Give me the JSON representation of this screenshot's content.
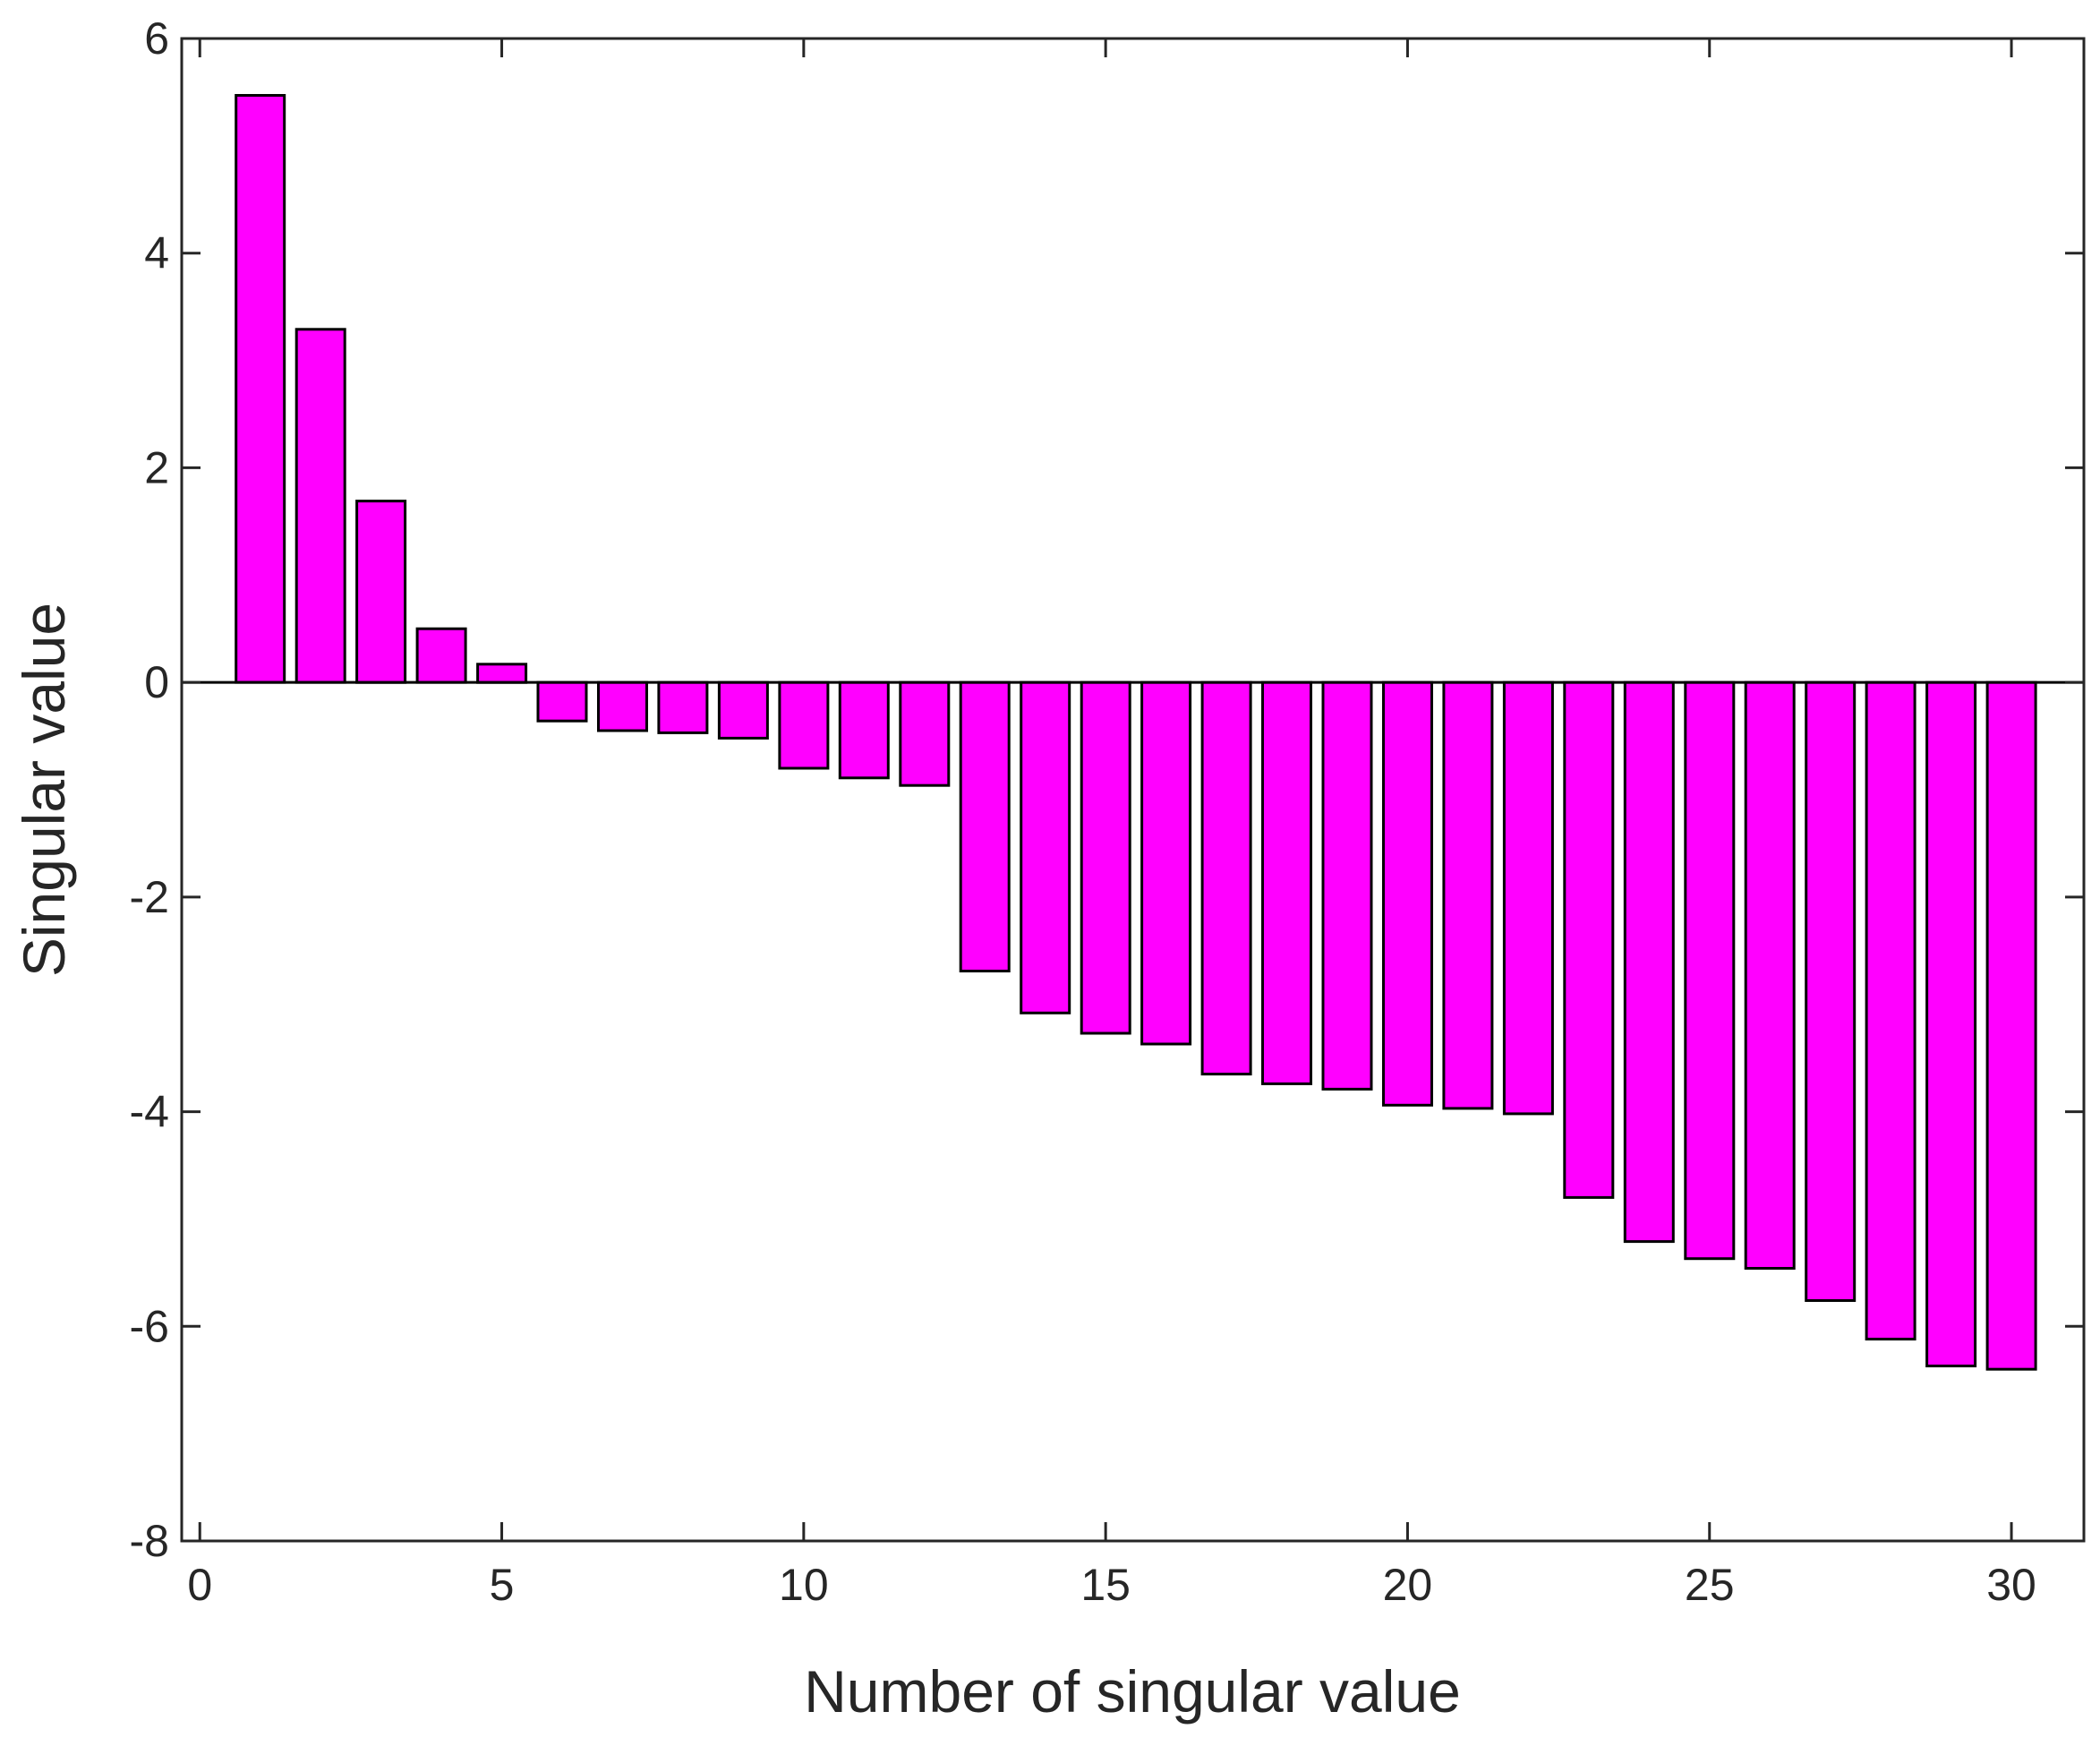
{
  "chart_data": {
    "type": "bar",
    "title": "",
    "xlabel": "Number of singular value",
    "ylabel": "Singular value",
    "xlim": [
      -0.3,
      31.2
    ],
    "ylim": [
      -8,
      6
    ],
    "xticks": [
      0,
      5,
      10,
      15,
      20,
      25,
      30
    ],
    "yticks": [
      -8,
      -6,
      -4,
      -2,
      0,
      2,
      4,
      6
    ],
    "x": [
      1,
      2,
      3,
      4,
      5,
      6,
      7,
      8,
      9,
      10,
      11,
      12,
      13,
      14,
      15,
      16,
      17,
      18,
      19,
      20,
      21,
      22,
      23,
      24,
      25,
      26,
      27,
      28,
      29,
      30
    ],
    "values": [
      5.47,
      3.29,
      1.69,
      0.5,
      0.17,
      -0.36,
      -0.45,
      -0.47,
      -0.52,
      -0.8,
      -0.89,
      -0.96,
      -2.69,
      -3.08,
      -3.27,
      -3.37,
      -3.65,
      -3.74,
      -3.79,
      -3.94,
      -3.97,
      -4.02,
      -4.8,
      -5.21,
      -5.37,
      -5.46,
      -5.76,
      -6.12,
      -6.37,
      -6.4
    ],
    "bar_color": "#ff00ff",
    "edge_color": "#000000",
    "grid": false,
    "legend": "none"
  }
}
